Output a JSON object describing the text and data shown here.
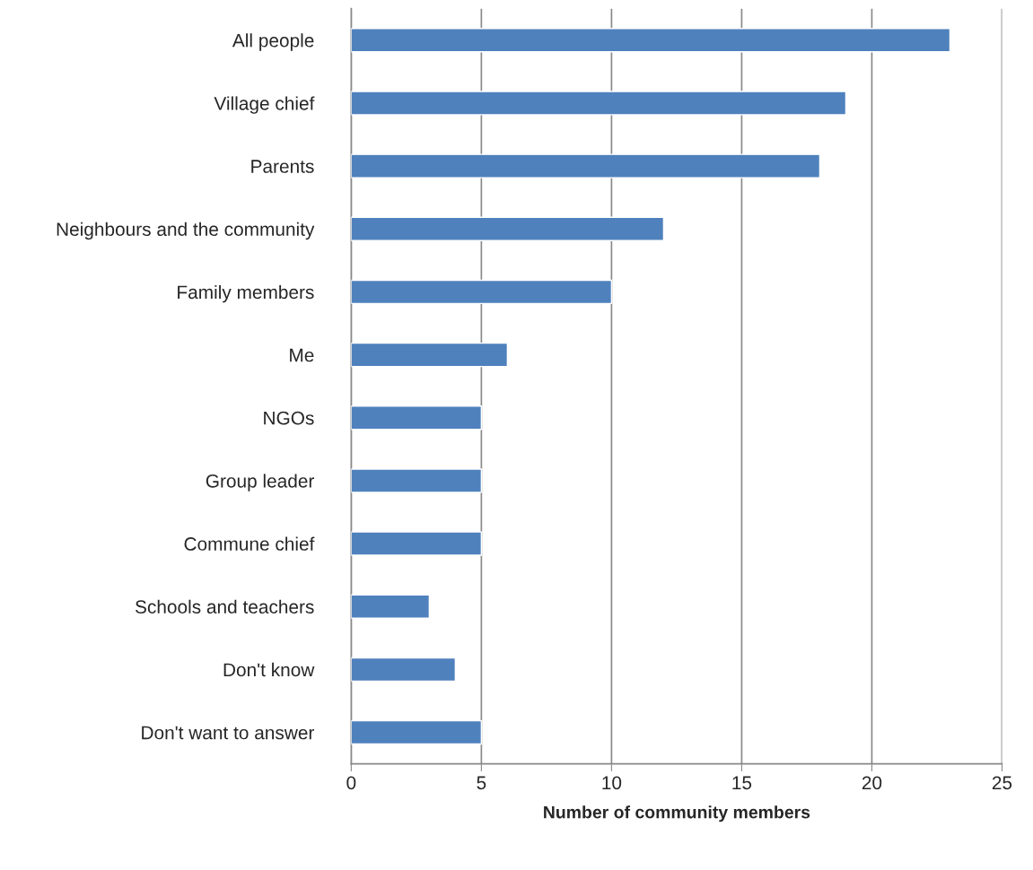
{
  "chart_data": {
    "type": "bar",
    "orientation": "horizontal",
    "categories": [
      "All people",
      "Village chief",
      "Parents",
      "Neighbours and the community",
      "Family members",
      "Me",
      "NGOs",
      "Group leader",
      "Commune chief",
      "Schools and teachers",
      "Don't know",
      "Don't want to answer"
    ],
    "values": [
      23,
      19,
      18,
      12,
      10,
      6,
      5,
      5,
      5,
      3,
      4,
      5
    ],
    "color": "#4f81bd",
    "xlabel": "Number of community members",
    "xlim": [
      0,
      25
    ],
    "xticks": [
      0,
      5,
      10,
      15,
      20,
      25
    ],
    "grid": "x"
  }
}
